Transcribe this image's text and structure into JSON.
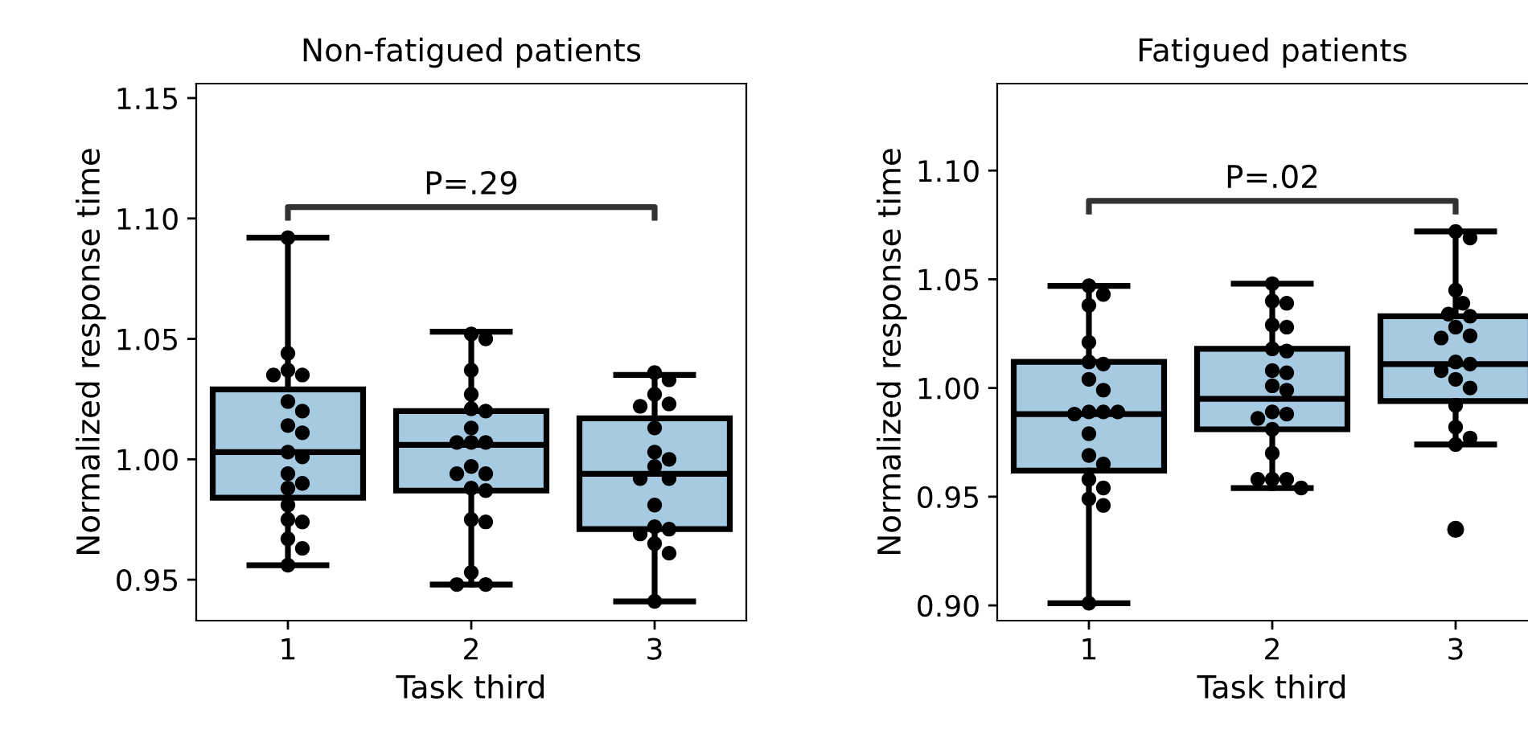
{
  "chart_data": [
    {
      "type": "box",
      "title": "Non-fatigued patients",
      "xlabel": "Task third",
      "ylabel": "Normalized response time",
      "categories": [
        "1",
        "2",
        "3"
      ],
      "color": "#a6cae2",
      "boxes": [
        {
          "low": 0.956,
          "q1": 0.984,
          "median": 1.003,
          "q3": 1.029,
          "high": 1.092
        },
        {
          "low": 0.948,
          "q1": 0.987,
          "median": 1.006,
          "q3": 1.02,
          "high": 1.053
        },
        {
          "low": 0.941,
          "q1": 0.971,
          "median": 0.994,
          "q3": 1.017,
          "high": 1.035
        }
      ],
      "series": [
        {
          "type": "scatter",
          "color": "#000000",
          "x": [
            "1",
            "1",
            "1",
            "1",
            "1",
            "1",
            "1",
            "1",
            "1",
            "1",
            "1",
            "1",
            "1",
            "1",
            "1",
            "1",
            "1",
            "1",
            "1",
            "1",
            "2",
            "2",
            "2",
            "2",
            "2",
            "2",
            "2",
            "2",
            "2",
            "2",
            "2",
            "2",
            "2",
            "2",
            "2",
            "2",
            "2",
            "2",
            "2",
            "2",
            "3",
            "3",
            "3",
            "3",
            "3",
            "3",
            "3",
            "3",
            "3",
            "3",
            "3",
            "3",
            "3",
            "3",
            "3",
            "3",
            "3",
            "3"
          ],
          "values": [
            1.092,
            1.044,
            1.037,
            1.035,
            1.035,
            1.024,
            1.02,
            1.014,
            1.011,
            1.003,
            1.001,
            0.994,
            0.99,
            0.988,
            0.981,
            0.975,
            0.974,
            0.967,
            0.963,
            0.956,
            1.052,
            1.05,
            1.037,
            1.027,
            1.021,
            1.02,
            1.013,
            1.007,
            1.007,
            1.007,
            0.997,
            0.994,
            0.994,
            0.988,
            0.987,
            0.975,
            0.974,
            0.953,
            0.948,
            0.948,
            1.036,
            1.033,
            1.027,
            1.023,
            1.022,
            1.013,
            1.003,
            1.0,
            0.997,
            0.992,
            0.992,
            0.981,
            0.972,
            0.971,
            0.969,
            0.965,
            0.961,
            0.941
          ]
        }
      ],
      "ylim": [
        0.933,
        1.156
      ],
      "yticks": [
        {
          "value": 0.95,
          "label": "0.95"
        },
        {
          "value": 1.0,
          "label": "1.00"
        },
        {
          "value": 1.05,
          "label": "1.05"
        },
        {
          "value": 1.1,
          "label": "1.10"
        },
        {
          "value": 1.15,
          "label": "1.15"
        }
      ],
      "annotations": [
        "P=.29"
      ],
      "grid": false
    },
    {
      "type": "box",
      "title": "Fatigued patients",
      "xlabel": "Task third",
      "ylabel": "Normalized response time",
      "categories": [
        "1",
        "2",
        "3"
      ],
      "color": "#a6cae2",
      "boxes": [
        {
          "low": 0.901,
          "q1": 0.962,
          "median": 0.988,
          "q3": 1.012,
          "high": 1.047
        },
        {
          "low": 0.954,
          "q1": 0.981,
          "median": 0.995,
          "q3": 1.018,
          "high": 1.048
        },
        {
          "low": 0.974,
          "q1": 0.994,
          "median": 1.011,
          "q3": 1.033,
          "high": 1.072,
          "outliers": [
            0.935
          ]
        }
      ],
      "series": [
        {
          "type": "scatter",
          "color": "#000000",
          "x": [
            "1",
            "1",
            "1",
            "1",
            "1",
            "1",
            "1",
            "1",
            "1",
            "1",
            "1",
            "1",
            "1",
            "1",
            "1",
            "1",
            "1",
            "1",
            "1",
            "1",
            "2",
            "2",
            "2",
            "2",
            "2",
            "2",
            "2",
            "2",
            "2",
            "2",
            "2",
            "2",
            "2",
            "2",
            "2",
            "2",
            "2",
            "2",
            "2",
            "2",
            "3",
            "3",
            "3",
            "3",
            "3",
            "3",
            "3",
            "3",
            "3",
            "3",
            "3",
            "3",
            "3",
            "3",
            "3",
            "3",
            "3",
            "3"
          ],
          "values": [
            1.047,
            1.043,
            1.038,
            1.021,
            1.012,
            1.011,
            1.004,
            0.999,
            0.989,
            0.989,
            0.988,
            0.979,
            0.969,
            0.965,
            0.958,
            0.954,
            0.949,
            0.946,
            0.901,
            0.989,
            1.048,
            1.04,
            1.039,
            1.029,
            1.028,
            1.018,
            1.017,
            1.008,
            1.007,
            1.001,
            0.999,
            0.989,
            0.988,
            0.986,
            0.981,
            0.97,
            0.958,
            0.958,
            0.958,
            0.954,
            1.072,
            1.069,
            1.045,
            1.039,
            1.034,
            1.033,
            1.028,
            1.024,
            1.023,
            1.012,
            1.011,
            1.008,
            1.004,
            1.0,
            0.992,
            0.982,
            0.977,
            0.974
          ]
        }
      ],
      "ylim": [
        0.893,
        1.14
      ],
      "yticks": [
        {
          "value": 0.9,
          "label": "0.90"
        },
        {
          "value": 0.95,
          "label": "0.95"
        },
        {
          "value": 1.0,
          "label": "1.00"
        },
        {
          "value": 1.05,
          "label": "1.05"
        },
        {
          "value": 1.1,
          "label": "1.10"
        }
      ],
      "annotations": [
        "P=.02"
      ],
      "grid": false
    }
  ]
}
